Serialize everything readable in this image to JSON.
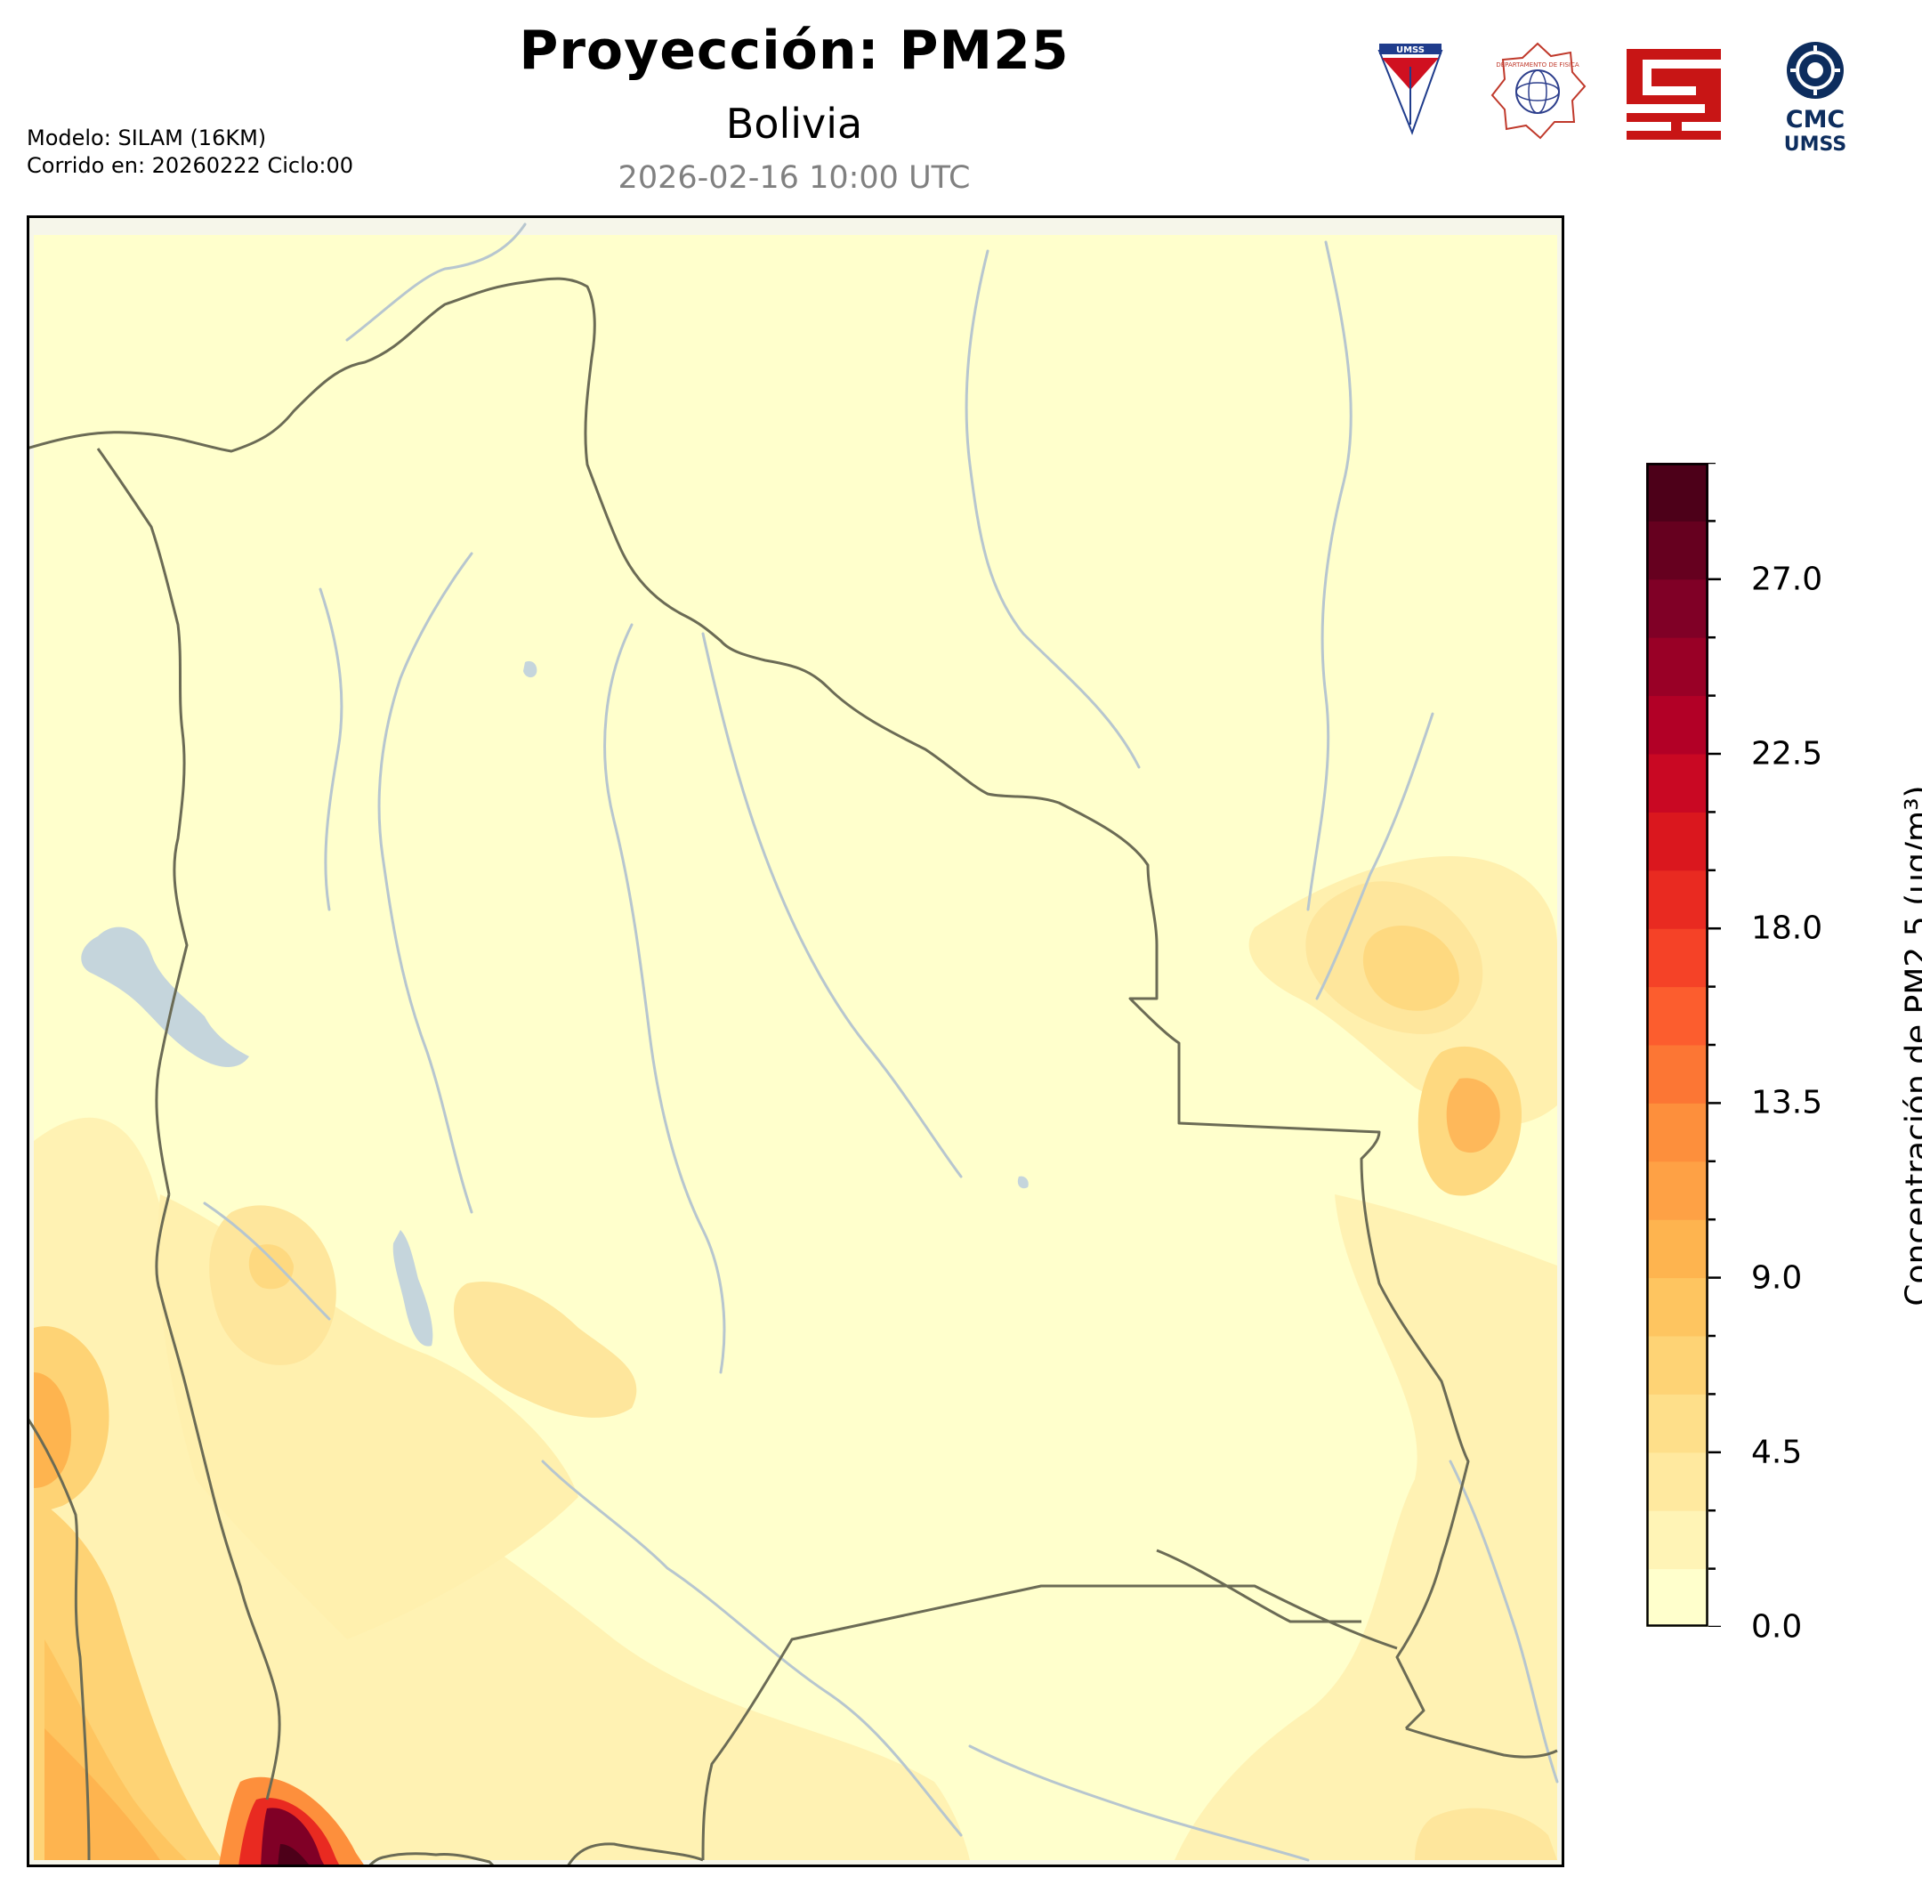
{
  "header": {
    "title": "Proyección: PM25",
    "subtitle": "Bolivia",
    "datetime": "2026-02-16 10:00 UTC",
    "model_line": "Modelo: SILAM (16KM)",
    "run_line": "Corrido en: 20260222 Ciclo:00"
  },
  "logos": {
    "umss_text": "UMSS",
    "fisica_text": "DEPARTAMENTO DE FISICA",
    "cmc_line1": "CMC",
    "cmc_line2": "UMSS"
  },
  "colorbar": {
    "label": "Concentración de PM2.5 (μg/m³)",
    "min": 0,
    "max": 30,
    "ticks": [
      "0.0",
      "4.5",
      "9.0",
      "13.5",
      "18.0",
      "22.5",
      "27.0"
    ],
    "levels": 20,
    "colors": [
      "#ffffcc",
      "#fff4b6",
      "#ffe99f",
      "#fedf8a",
      "#fed375",
      "#fec560",
      "#feb44f",
      "#fea145",
      "#fd8f3c",
      "#fc7634",
      "#fc5d2e",
      "#f54227",
      "#e92a21",
      "#da171e",
      "#c90823",
      "#b20026",
      "#990026",
      "#800026",
      "#66001f",
      "#4d0019"
    ]
  },
  "map": {
    "region": "Bolivia",
    "colors": {
      "background": "#ffffcc",
      "border": "#6b6b55",
      "river": "#b7c6cf",
      "lake": "#c5d5dc",
      "frame": "#000000"
    }
  }
}
